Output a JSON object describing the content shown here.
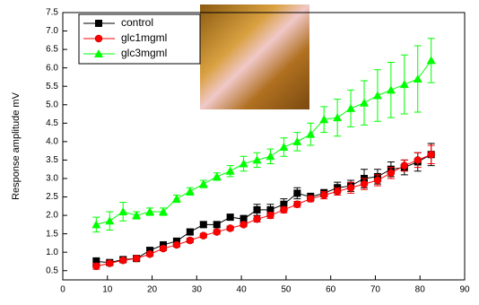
{
  "chart_data": {
    "type": "line",
    "y_label": "Response amplitude mV",
    "xlim": [
      0,
      90
    ],
    "xticks": [
      0,
      10,
      20,
      30,
      40,
      50,
      60,
      70,
      80,
      90
    ],
    "ylim": [
      0.25,
      7.5
    ],
    "yticks": [
      0.5,
      {
        "value": 1,
        "label": "1.0"
      },
      1.5,
      {
        "value": 2,
        "label": "2.0"
      },
      2.5,
      {
        "value": 3,
        "label": "3.0"
      },
      3.5,
      {
        "value": 4,
        "label": "4.0"
      },
      4.5,
      {
        "value": 5,
        "label": "5.0"
      },
      5.5,
      {
        "value": 6,
        "label": "6.0"
      },
      6.5,
      {
        "value": 7,
        "label": "7.0"
      },
      7.5
    ],
    "legend": "top-left",
    "x": [
      7.5,
      10.5,
      13.5,
      16.5,
      19.5,
      22.5,
      25.5,
      28.5,
      31.5,
      34.5,
      37.5,
      40.5,
      43.5,
      46.5,
      49.5,
      52.5,
      55.5,
      58.5,
      61.5,
      64.5,
      67.5,
      70.5,
      73.5,
      76.5,
      79.5,
      82.5
    ],
    "series": [
      {
        "name": "control",
        "color": "#000000",
        "marker": "square",
        "values": [
          0.75,
          0.72,
          0.8,
          0.83,
          1.05,
          1.2,
          1.3,
          1.55,
          1.75,
          1.75,
          1.95,
          1.9,
          2.15,
          2.15,
          2.3,
          2.6,
          2.5,
          2.6,
          2.75,
          2.8,
          3.0,
          3.05,
          3.25,
          3.3,
          3.45,
          3.65
        ],
        "errors": [
          0.1,
          0.06,
          0.06,
          0.06,
          0.08,
          0.08,
          0.08,
          0.08,
          0.08,
          0.08,
          0.08,
          0.1,
          0.15,
          0.15,
          0.15,
          0.15,
          0.1,
          0.1,
          0.15,
          0.15,
          0.25,
          0.2,
          0.2,
          0.2,
          0.25,
          0.3
        ]
      },
      {
        "name": "glc1mgml",
        "color": "#ff0000",
        "marker": "circle",
        "values": [
          0.62,
          0.7,
          0.78,
          0.83,
          0.95,
          1.1,
          1.2,
          1.32,
          1.45,
          1.55,
          1.65,
          1.75,
          1.9,
          2.0,
          2.15,
          2.3,
          2.45,
          2.55,
          2.65,
          2.75,
          2.85,
          2.95,
          3.15,
          3.35,
          3.5,
          3.65
        ],
        "errors": [
          0.08,
          0.06,
          0.06,
          0.06,
          0.06,
          0.06,
          0.06,
          0.06,
          0.06,
          0.06,
          0.06,
          0.06,
          0.08,
          0.08,
          0.08,
          0.08,
          0.08,
          0.1,
          0.1,
          0.15,
          0.15,
          0.15,
          0.15,
          0.15,
          0.2,
          0.25
        ]
      },
      {
        "name": "glc3mgml",
        "color": "#00ff00",
        "marker": "triangle",
        "values": [
          1.75,
          1.85,
          2.1,
          2.0,
          2.1,
          2.1,
          2.45,
          2.65,
          2.85,
          3.05,
          3.2,
          3.4,
          3.5,
          3.6,
          3.85,
          4.0,
          4.2,
          4.6,
          4.65,
          4.9,
          5.05,
          5.25,
          5.4,
          5.55,
          5.7,
          6.2
        ],
        "errors": [
          0.2,
          0.25,
          0.25,
          0.1,
          0.1,
          0.1,
          0.1,
          0.1,
          0.1,
          0.1,
          0.15,
          0.2,
          0.2,
          0.2,
          0.25,
          0.25,
          0.3,
          0.35,
          0.5,
          0.5,
          0.6,
          0.7,
          0.75,
          0.8,
          0.9,
          0.6
        ]
      }
    ]
  }
}
